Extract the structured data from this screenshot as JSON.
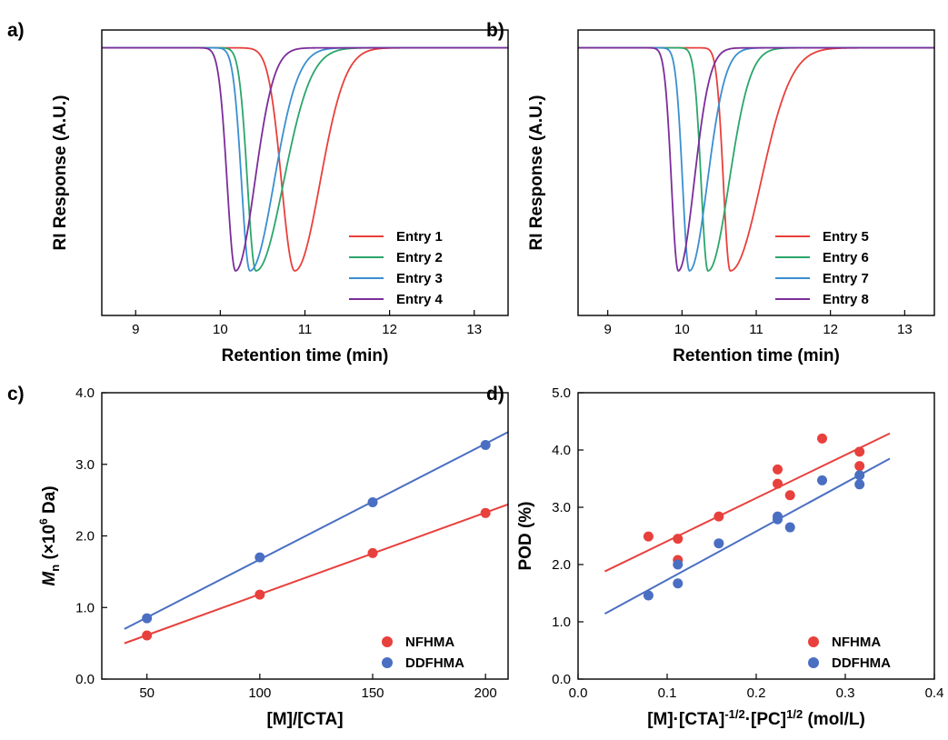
{
  "chart_data": [
    {
      "panel": "a)",
      "type": "line",
      "xlabel": "Retention time (min)",
      "ylabel": "RI Response (A.U.)",
      "xlim": [
        8.6,
        13.4
      ],
      "ylim": [
        -1.2,
        0.08
      ],
      "xticks": [
        9,
        10,
        11,
        12,
        13
      ],
      "yticks_labeled": false,
      "grid": false,
      "legend_position": "lower-right",
      "series": [
        {
          "name": "Entry 1",
          "color": "#e8403c",
          "peak": 10.88,
          "depth": 1.0,
          "left_width": 0.22,
          "right_width": 0.42
        },
        {
          "name": "Entry 2",
          "color": "#2aa66a",
          "peak": 10.42,
          "depth": 1.0,
          "left_width": 0.14,
          "right_width": 0.46
        },
        {
          "name": "Entry 3",
          "color": "#3a8fd0",
          "peak": 10.35,
          "depth": 1.0,
          "left_width": 0.14,
          "right_width": 0.4
        },
        {
          "name": "Entry 4",
          "color": "#7b2d9a",
          "peak": 10.18,
          "depth": 1.0,
          "left_width": 0.14,
          "right_width": 0.32
        }
      ]
    },
    {
      "panel": "b)",
      "type": "line",
      "xlabel": "Retention time (min)",
      "ylabel": "RI Response (A.U.)",
      "xlim": [
        8.6,
        13.4
      ],
      "ylim": [
        -1.2,
        0.08
      ],
      "xticks": [
        9,
        10,
        11,
        12,
        13
      ],
      "yticks_labeled": false,
      "grid": false,
      "legend_position": "lower-right",
      "series": [
        {
          "name": "Entry 5",
          "color": "#e8403c",
          "peak": 10.65,
          "depth": 1.0,
          "left_width": 0.13,
          "right_width": 0.58
        },
        {
          "name": "Entry 6",
          "color": "#2aa66a",
          "peak": 10.35,
          "depth": 1.0,
          "left_width": 0.13,
          "right_width": 0.4
        },
        {
          "name": "Entry 7",
          "color": "#3a8fd0",
          "peak": 10.1,
          "depth": 1.0,
          "left_width": 0.13,
          "right_width": 0.34
        },
        {
          "name": "Entry 8",
          "color": "#7b2d9a",
          "peak": 9.95,
          "depth": 1.0,
          "left_width": 0.13,
          "right_width": 0.3
        }
      ]
    },
    {
      "panel": "c)",
      "type": "scatter",
      "xlabel": "[M]/[CTA]",
      "ylabel": "M_n (×10^6 Da)",
      "xlim": [
        30,
        210
      ],
      "ylim": [
        0.0,
        4.0
      ],
      "xticks": [
        50,
        100,
        150,
        200
      ],
      "yticks": [
        0.0,
        1.0,
        2.0,
        3.0,
        4.0
      ],
      "ytick_labels": [
        "0.0",
        "1.0",
        "2.0",
        "3.0",
        "4.0"
      ],
      "grid": false,
      "legend_position": "lower-right",
      "series": [
        {
          "name": "NFHMA",
          "color": "#e8403c",
          "x": [
            50,
            100,
            150,
            200
          ],
          "y": [
            0.61,
            1.18,
            1.76,
            2.32
          ],
          "fit": {
            "x": [
              40,
              210
            ],
            "y": [
              0.5,
              2.44
            ]
          }
        },
        {
          "name": "DDFHMA",
          "color": "#4a6fc2",
          "x": [
            50,
            100,
            150,
            200
          ],
          "y": [
            0.85,
            1.7,
            2.47,
            3.27
          ],
          "fit": {
            "x": [
              40,
              210
            ],
            "y": [
              0.7,
              3.45
            ]
          }
        }
      ]
    },
    {
      "panel": "d)",
      "type": "scatter",
      "xlabel": "[M]·[CTA]-1/2·[PC]1/2 (mol/L)",
      "ylabel": "POD (%)",
      "xlim": [
        0.0,
        0.4
      ],
      "ylim": [
        0.0,
        5.0
      ],
      "xticks": [
        0.0,
        0.1,
        0.2,
        0.3,
        0.4
      ],
      "xtick_labels": [
        "0.0",
        "0.1",
        "0.2",
        "0.3",
        "0.4"
      ],
      "yticks": [
        0.0,
        1.0,
        2.0,
        3.0,
        4.0,
        5.0
      ],
      "ytick_labels": [
        "0.0",
        "1.0",
        "2.0",
        "3.0",
        "4.0",
        "5.0"
      ],
      "grid": false,
      "legend_position": "lower-right",
      "series": [
        {
          "name": "NFHMA",
          "color": "#e8403c",
          "x": [
            0.079,
            0.112,
            0.112,
            0.158,
            0.224,
            0.224,
            0.238,
            0.274,
            0.316,
            0.316
          ],
          "y": [
            2.49,
            2.45,
            2.08,
            2.84,
            3.66,
            3.41,
            3.21,
            4.2,
            3.97,
            3.72
          ],
          "fit": {
            "x": [
              0.03,
              0.35
            ],
            "y": [
              1.88,
              4.29
            ]
          }
        },
        {
          "name": "DDFHMA",
          "color": "#4a6fc2",
          "x": [
            0.079,
            0.112,
            0.112,
            0.158,
            0.224,
            0.224,
            0.238,
            0.274,
            0.316,
            0.316
          ],
          "y": [
            1.46,
            2.0,
            1.67,
            2.37,
            2.84,
            2.79,
            2.65,
            3.47,
            3.56,
            3.4
          ],
          "fit": {
            "x": [
              0.03,
              0.35
            ],
            "y": [
              1.14,
              3.85
            ]
          }
        }
      ]
    }
  ]
}
